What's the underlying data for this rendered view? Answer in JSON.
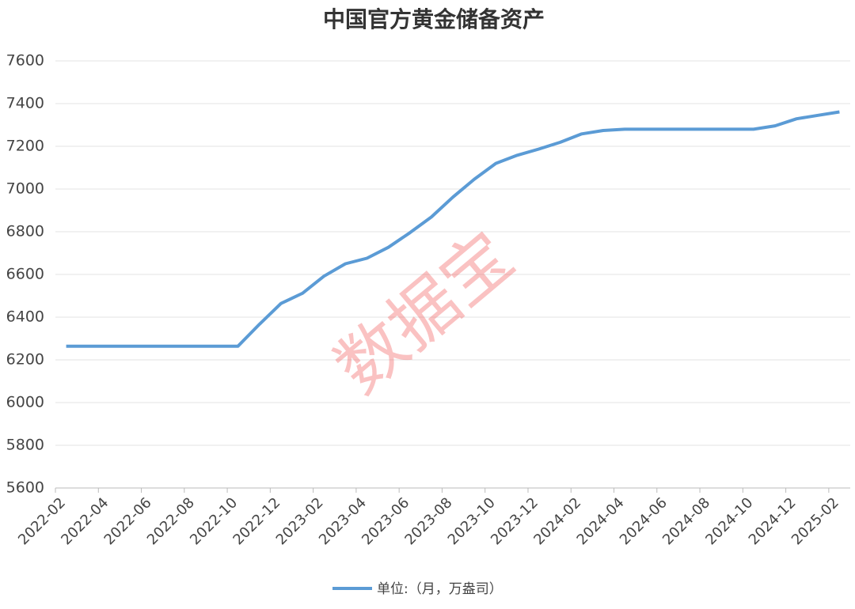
{
  "chart_data": {
    "type": "line",
    "title": "中国官方黄金储备资产",
    "categories": [
      "2022-02",
      null,
      "2022-04",
      null,
      "2022-06",
      null,
      "2022-08",
      null,
      "2022-10",
      null,
      "2022-12",
      null,
      "2023-02",
      null,
      "2023-04",
      null,
      "2023-06",
      null,
      "2023-08",
      null,
      "2023-10",
      null,
      "2023-12",
      null,
      "2024-02",
      null,
      "2024-04",
      null,
      "2024-06",
      null,
      "2024-08",
      null,
      "2024-10",
      null,
      "2024-12",
      null,
      "2025-02"
    ],
    "series": [
      {
        "name": "单位:（月，万盎司）",
        "color": "#5b9bd5",
        "values": [
          6264,
          6264,
          6264,
          6264,
          6264,
          6264,
          6264,
          6264,
          6264,
          6367,
          6464,
          6512,
          6592,
          6650,
          6676,
          6727,
          6795,
          6869,
          6962,
          7046,
          7120,
          7158,
          7187,
          7219,
          7258,
          7274,
          7280,
          7280,
          7280,
          7280,
          7280,
          7280,
          7280,
          7296,
          7329,
          7345,
          7361
        ]
      }
    ],
    "ylim": [
      5600,
      7600
    ],
    "yticks": [
      5600,
      5800,
      6000,
      6200,
      6400,
      6600,
      6800,
      7000,
      7200,
      7400,
      7600
    ],
    "grid": true,
    "legend": "bottom",
    "watermark": "数据宝"
  }
}
